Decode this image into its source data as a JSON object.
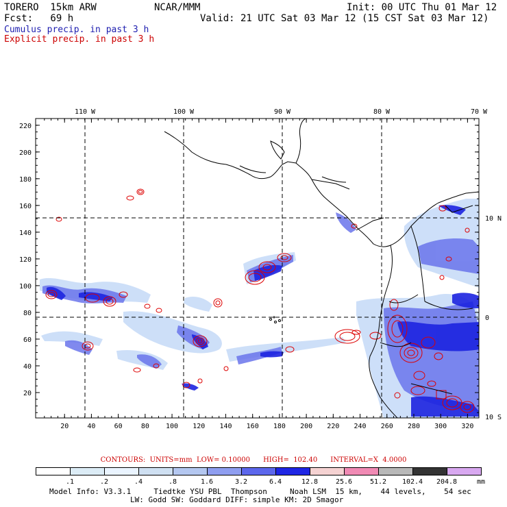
{
  "header": {
    "model": "TORERO  15km ARW",
    "org": "NCAR/MMM",
    "init": "Init: 00 UTC Thu 01 Mar 12",
    "fcst": "Fcst:   69 h",
    "valid": "Valid: 21 UTC Sat 03 Mar 12 (15 CST Sat 03 Mar 12)",
    "cumulus": "Cumulus precip. in past 3 h",
    "explicit": "Explicit precip. in past 3 h"
  },
  "colors": {
    "cumulus": "#1a1ad0",
    "explicit": "#dd0000",
    "grid": "#000000"
  },
  "axes": {
    "x_ticks": [
      "20",
      "40",
      "60",
      "80",
      "100",
      "120",
      "140",
      "160",
      "180",
      "200",
      "220",
      "240",
      "260",
      "280",
      "300",
      "320"
    ],
    "y_ticks": [
      "20",
      "40",
      "60",
      "80",
      "100",
      "120",
      "140",
      "160",
      "180",
      "200",
      "220"
    ],
    "lon_labels": [
      "110 W",
      "100 W",
      "90 W",
      "80 W",
      "70 W"
    ],
    "lat_labels": [
      "10 N",
      "0",
      "10 S"
    ]
  },
  "footer": {
    "contours": "CONTOURS:  UNITS=mm  LOW= 0.10000      HIGH=  102.40      INTERVAL=X  4.0000",
    "unit": "mm",
    "model_info_1": "Model Info: V3.3.1     Tiedtke YSU PBL  Thompson     Noah LSM  15 km,    44 levels,    54 sec",
    "model_info_2": "LW: Godd SW: Goddard DIFF: simple KM: 2D Smagor"
  },
  "colorbar": {
    "labels": [
      ".1",
      ".2",
      ".4",
      ".8",
      "1.6",
      "3.2",
      "6.4",
      "12.8",
      "25.6",
      "51.2",
      "102.4",
      "204.8"
    ],
    "colors": [
      "#ffffff",
      "#dcecf6",
      "#eaf4ff",
      "#cfe0f2",
      "#b4c7f0",
      "#8f9ef0",
      "#5c67ec",
      "#1f26e4",
      "#f5d2d2",
      "#f08ab4",
      "#b8b8b8",
      "#333333",
      "#d8a8f0"
    ]
  }
}
